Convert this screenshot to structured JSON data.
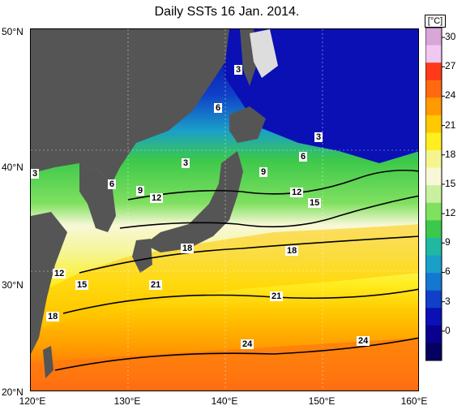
{
  "title": "Daily SSTs 16 Jan. 2014.",
  "unit": "[°C]",
  "lat_labels": [
    "50°N",
    "40°N",
    "30°N",
    "20°N"
  ],
  "lon_labels": [
    "120°E",
    "130°E",
    "140°E",
    "150°E",
    "160°E"
  ],
  "map_extent": {
    "lon": [
      120,
      160
    ],
    "lat": [
      20,
      50
    ]
  },
  "colorbar": {
    "ticks": [
      "30",
      "27",
      "24",
      "21",
      "18",
      "15",
      "12",
      "9",
      "6",
      "3",
      "0"
    ],
    "range": [
      -3,
      31
    ],
    "colors": [
      "#d9a6d9",
      "#f0c8f0",
      "#ff3a1a",
      "#ff6a10",
      "#ff9a00",
      "#ffc800",
      "#ffee20",
      "#f5f590",
      "#f8f8d8",
      "#c8f0a0",
      "#80e060",
      "#3cc84a",
      "#20b8a0",
      "#1aa0c8",
      "#1478d0",
      "#1040c8",
      "#0a10b4",
      "#0a0090",
      "#060060"
    ]
  },
  "contour_labels": [
    "3",
    "3",
    "3",
    "6",
    "6",
    "6",
    "3",
    "9",
    "9",
    "12",
    "12",
    "15",
    "18",
    "18",
    "12",
    "15",
    "21",
    "21",
    "18",
    "24",
    "24"
  ],
  "land_color": "#555555",
  "ice_color": "#dddddd"
}
